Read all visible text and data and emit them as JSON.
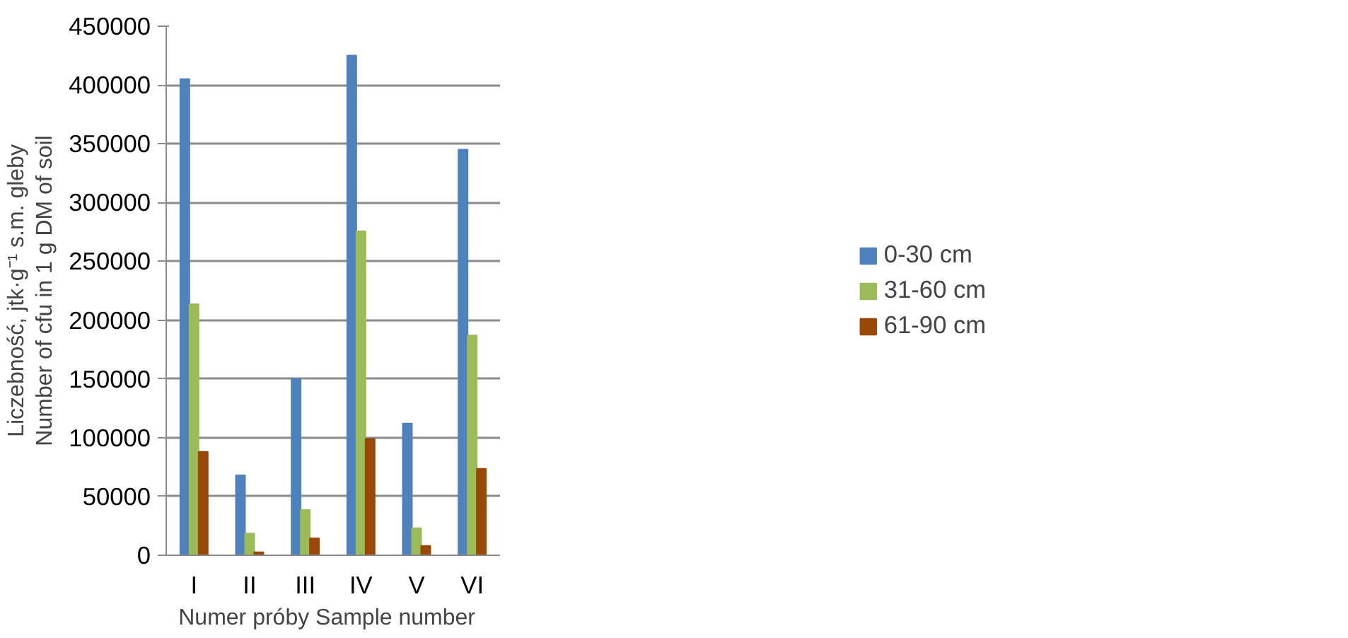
{
  "chart_data": {
    "type": "bar",
    "ylabel": "Liczebność, jtk·g⁻¹ s.m. gleby\nNumber of cfu in 1 g DM of soil",
    "xlabel": "Numer próby   Sample number",
    "categories": [
      "I",
      "II",
      "III",
      "IV",
      "V",
      "VI"
    ],
    "series": [
      {
        "name": "0-30 cm",
        "color": "#4f81bd",
        "values": [
          405000,
          68000,
          150000,
          425000,
          112000,
          345000
        ]
      },
      {
        "name": "31-60 cm",
        "color": "#9bbb59",
        "values": [
          213500,
          18500,
          38500,
          275500,
          23000,
          187000
        ]
      },
      {
        "name": "61-90 cm",
        "color": "#984807",
        "values": [
          88000,
          2500,
          14500,
          99000,
          8000,
          73500
        ]
      }
    ],
    "ylim": [
      0,
      450000
    ],
    "yticks": [
      0,
      50000,
      100000,
      150000,
      200000,
      250000,
      300000,
      350000,
      400000,
      450000
    ],
    "grid": "y",
    "legend": "right"
  }
}
